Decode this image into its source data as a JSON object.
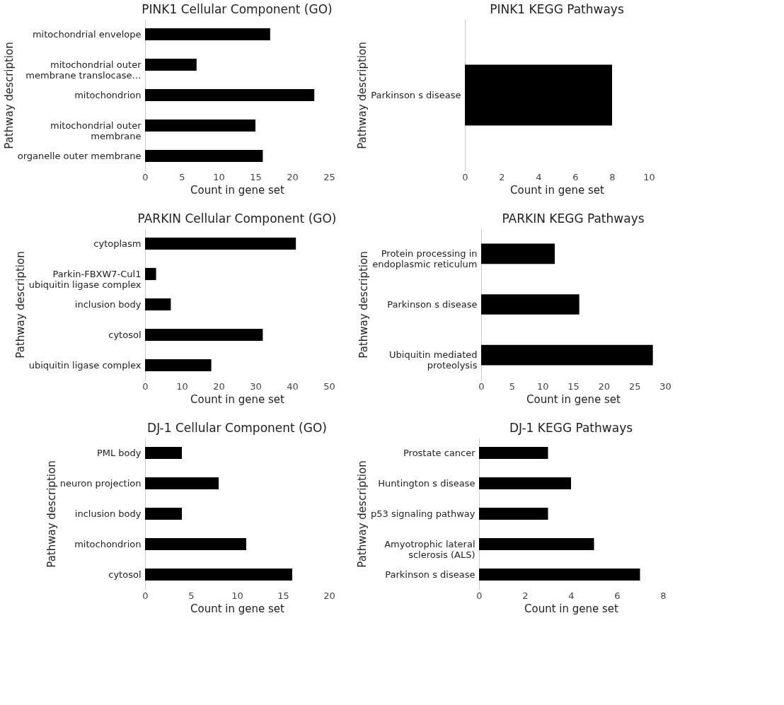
{
  "chart_data": [
    {
      "type": "bar",
      "orientation": "horizontal",
      "title": "PINK1 Cellular Component (GO)",
      "xlabel": "Count in gene set",
      "ylabel": "Pathway description",
      "categories": [
        "mitochondrial envelope",
        "mitochondrial outer membrane translocase…",
        "mitochondrion",
        "mitochondrial outer membrane",
        "organelle outer membrane"
      ],
      "values": [
        17,
        7,
        23,
        15,
        16
      ],
      "color": "#000000",
      "xlim": [
        0,
        25
      ],
      "xticks": [
        0,
        5,
        10,
        15,
        20,
        25
      ],
      "grid": false
    },
    {
      "type": "bar",
      "orientation": "horizontal",
      "title": "PINK1 KEGG Pathways",
      "xlabel": "Count in gene set",
      "ylabel": "Pathway description",
      "categories": [
        "Parkinson s disease"
      ],
      "values": [
        8
      ],
      "color": "#000000",
      "xlim": [
        0,
        10
      ],
      "xticks": [
        0,
        2,
        4,
        6,
        8,
        10
      ],
      "grid": false
    },
    {
      "type": "bar",
      "orientation": "horizontal",
      "title": "PARKIN Cellular Component (GO)",
      "xlabel": "Count in gene set",
      "ylabel": "Pathway description",
      "categories": [
        "cytoplasm",
        "Parkin-FBXW7-Cul1 ubiquitin ligase complex",
        "inclusion body",
        "cytosol",
        "ubiquitin ligase complex"
      ],
      "values": [
        41,
        3,
        7,
        32,
        18
      ],
      "color": "#000000",
      "xlim": [
        0,
        50
      ],
      "xticks": [
        0,
        10,
        20,
        30,
        40,
        50
      ],
      "grid": false
    },
    {
      "type": "bar",
      "orientation": "horizontal",
      "title": "PARKIN KEGG Pathways",
      "xlabel": "Count in gene set",
      "ylabel": "Pathway description",
      "categories": [
        "Protein processing in endoplasmic reticulum",
        "Parkinson s disease",
        "Ubiquitin mediated proteolysis"
      ],
      "values": [
        12,
        16,
        28
      ],
      "color": "#000000",
      "xlim": [
        0,
        30
      ],
      "xticks": [
        0,
        5,
        10,
        15,
        20,
        25,
        30
      ],
      "grid": false
    },
    {
      "type": "bar",
      "orientation": "horizontal",
      "title": "DJ-1 Cellular Component (GO)",
      "xlabel": "Count in gene set",
      "ylabel": "Pathway description",
      "categories": [
        "PML body",
        "neuron projection",
        "inclusion body",
        "mitochondrion",
        "cytosol"
      ],
      "values": [
        4,
        8,
        4,
        11,
        16
      ],
      "color": "#000000",
      "xlim": [
        0,
        20
      ],
      "xticks": [
        0,
        5,
        10,
        15,
        20
      ],
      "grid": false
    },
    {
      "type": "bar",
      "orientation": "horizontal",
      "title": "DJ-1 KEGG Pathways",
      "xlabel": "Count in gene set",
      "ylabel": "Pathway description",
      "categories": [
        "Prostate cancer",
        "Huntington s disease",
        "p53 signaling pathway",
        "Amyotrophic lateral sclerosis (ALS)",
        "Parkinson s disease"
      ],
      "values": [
        3,
        4,
        3,
        5,
        7
      ],
      "color": "#000000",
      "xlim": [
        0,
        8
      ],
      "xticks": [
        0,
        2,
        4,
        6,
        8
      ],
      "grid": false
    }
  ]
}
